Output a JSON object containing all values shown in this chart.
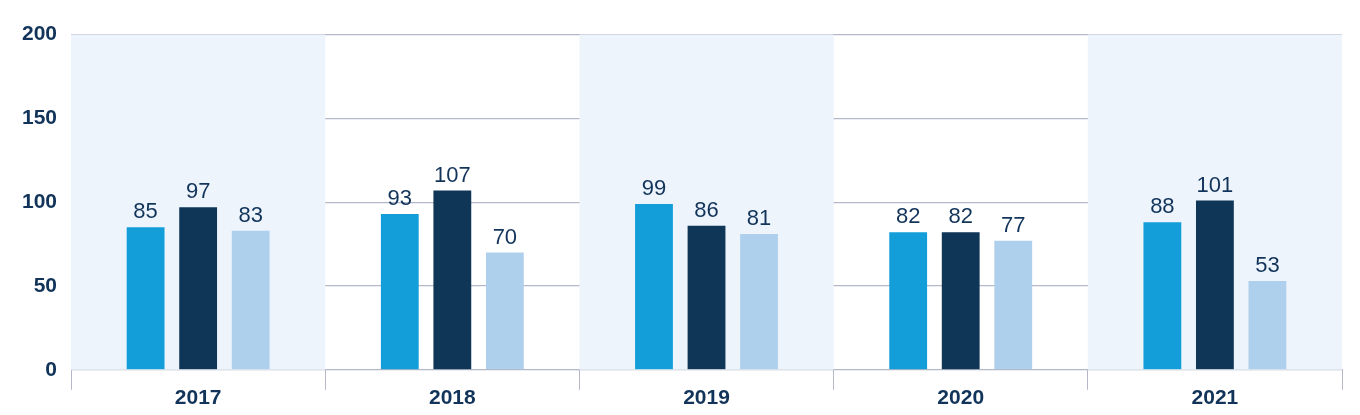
{
  "chart_data": {
    "type": "bar",
    "categories": [
      "2017",
      "2018",
      "2019",
      "2020",
      "2021"
    ],
    "series": [
      {
        "color": "#139ed9",
        "values": [
          85,
          93,
          99,
          82,
          88
        ]
      },
      {
        "color": "#0f3557",
        "values": [
          97,
          107,
          86,
          82,
          101
        ]
      },
      {
        "color": "#aed0ec",
        "values": [
          83,
          70,
          81,
          77,
          53
        ]
      }
    ],
    "ylim": [
      0,
      200
    ],
    "yticks": [
      0,
      50,
      100,
      150,
      200
    ],
    "grid": "y",
    "legend": false,
    "data_labels": true,
    "bands": [
      {
        "axis": "x",
        "from": "2017",
        "to": "2017",
        "color": "#eef4fc"
      },
      {
        "axis": "x",
        "from": "2019",
        "to": "2019",
        "color": "#eef4fc"
      },
      {
        "axis": "x",
        "from": "2021",
        "to": "2021",
        "color": "#eef4fc"
      }
    ]
  }
}
